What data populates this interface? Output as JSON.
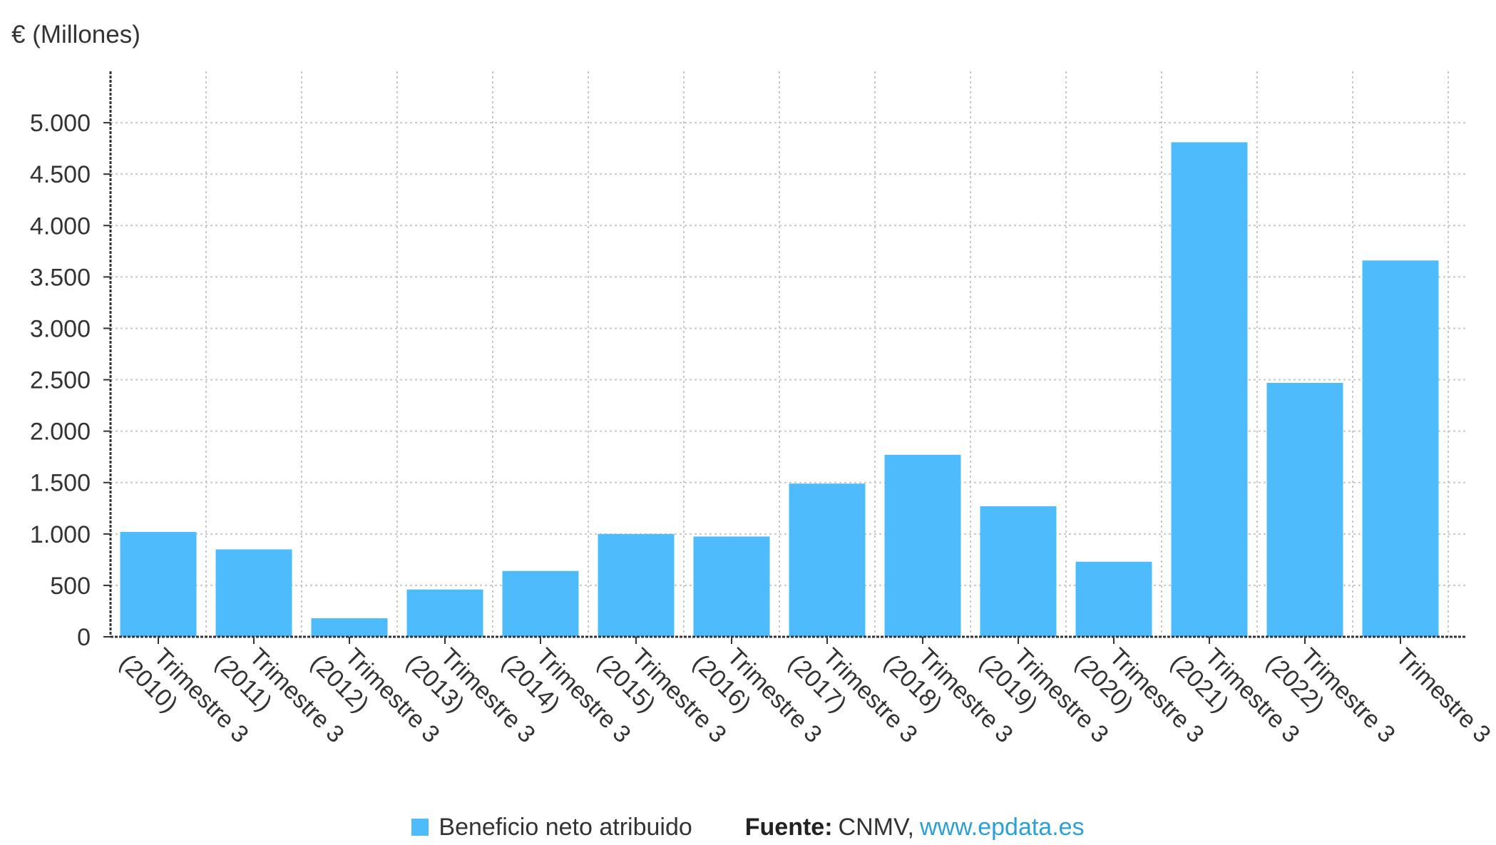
{
  "chart_data": {
    "type": "bar",
    "ylabel": "€ (Millones)",
    "categories": [
      "Trimestre 3 (2010)",
      "Trimestre 3 (2011)",
      "Trimestre 3 (2012)",
      "Trimestre 3 (2013)",
      "Trimestre 3 (2014)",
      "Trimestre 3 (2015)",
      "Trimestre 3 (2016)",
      "Trimestre 3 (2017)",
      "Trimestre 3 (2018)",
      "Trimestre 3 (2019)",
      "Trimestre 3 (2020)",
      "Trimestre 3 (2021)",
      "Trimestre 3 (2022)",
      "Trimestre 3"
    ],
    "series": [
      {
        "name": "Beneficio neto atribuido",
        "values": [
          1020,
          850,
          180,
          460,
          640,
          1000,
          975,
          1490,
          1770,
          1270,
          730,
          4810,
          2470,
          3660
        ],
        "color": "#4ebcfc"
      }
    ],
    "ylim": [
      0,
      5500
    ],
    "yticks": [
      0,
      500,
      1000,
      1500,
      2000,
      2500,
      3000,
      3500,
      4000,
      4500,
      5000
    ],
    "ytick_labels": [
      "0",
      "500",
      "1.000",
      "1.500",
      "2.000",
      "2.500",
      "3.000",
      "3.500",
      "4.000",
      "4.500",
      "5.000"
    ],
    "grid": true,
    "legend_position": "bottom"
  },
  "legend": {
    "label": "Beneficio neto atribuido"
  },
  "source": {
    "label": "Fuente:",
    "text": "CNMV,",
    "link": "www.epdata.es"
  },
  "colors": {
    "bar": "#4ebcfc",
    "grid": "#c8c8c8",
    "axis": "#333333",
    "link": "#2aa1d6"
  }
}
